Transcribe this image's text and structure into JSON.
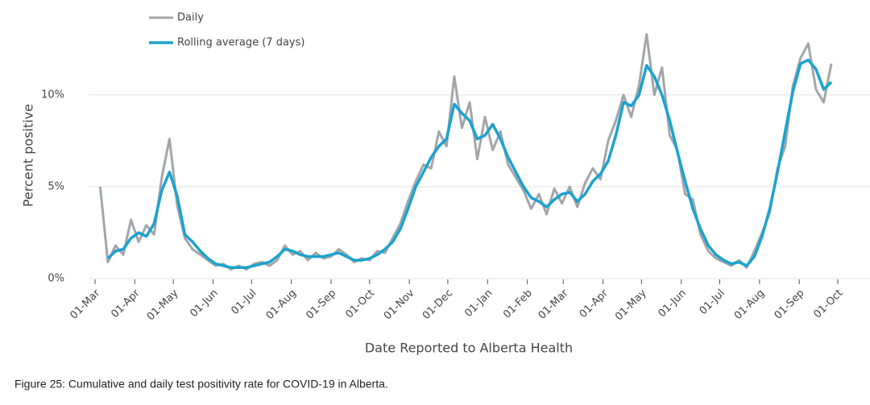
{
  "chart_data": {
    "type": "line",
    "x_label": "Date Reported to Alberta Health",
    "y_label": "Percent positive",
    "caption": "Figure 25: Cumulative and daily test positivity rate for COVID-19 in Alberta.",
    "legend": "top-left",
    "grid": true,
    "x": [
      4,
      10,
      16,
      22,
      28,
      34,
      40,
      46,
      52,
      58,
      64,
      70,
      76,
      82,
      88,
      94,
      100,
      106,
      112,
      118,
      124,
      130,
      136,
      142,
      148,
      154,
      160,
      166,
      172,
      178,
      184,
      190,
      196,
      202,
      208,
      214,
      220,
      226,
      232,
      238,
      244,
      250,
      256,
      262,
      268,
      274,
      280,
      286,
      292,
      298,
      304,
      310,
      316,
      322,
      328,
      334,
      340,
      346,
      352,
      358,
      364,
      370,
      376,
      382,
      388,
      394,
      400,
      406,
      412,
      418,
      424,
      430,
      436,
      442,
      448,
      454,
      460,
      466,
      472,
      478,
      484,
      490,
      496,
      502,
      508,
      514,
      520,
      526,
      532,
      538,
      544,
      550,
      556,
      562,
      568,
      574
    ],
    "series": [
      {
        "name": "Daily",
        "color": "#a2a6aa",
        "width": 3,
        "values": [
          5.0,
          0.9,
          1.8,
          1.3,
          3.2,
          2.0,
          2.9,
          2.4,
          5.5,
          7.6,
          4.0,
          2.2,
          1.6,
          1.3,
          1.0,
          0.7,
          0.8,
          0.5,
          0.7,
          0.5,
          0.8,
          0.9,
          0.7,
          1.0,
          1.8,
          1.3,
          1.5,
          1.0,
          1.4,
          1.1,
          1.2,
          1.6,
          1.3,
          0.9,
          1.1,
          1.0,
          1.5,
          1.4,
          2.2,
          3.0,
          4.2,
          5.3,
          6.2,
          6.0,
          8.0,
          7.2,
          11.0,
          8.2,
          9.6,
          6.5,
          8.8,
          7.0,
          8.0,
          6.2,
          5.5,
          4.8,
          3.8,
          4.6,
          3.5,
          4.9,
          4.1,
          5.0,
          3.9,
          5.2,
          6.0,
          5.4,
          7.5,
          8.6,
          10.0,
          8.8,
          10.5,
          13.3,
          10.0,
          11.5,
          7.8,
          7.0,
          4.6,
          4.3,
          2.4,
          1.5,
          1.1,
          0.9,
          0.7,
          1.0,
          0.6,
          1.5,
          2.5,
          3.6,
          6.0,
          7.2,
          10.5,
          12.0,
          12.8,
          10.3,
          9.6,
          11.7
        ]
      },
      {
        "name": "Rolling average (7 days)",
        "color": "#1ba3cf",
        "width": 3.5,
        "values": [
          null,
          1.1,
          1.5,
          1.6,
          2.2,
          2.5,
          2.3,
          3.0,
          4.8,
          5.8,
          4.5,
          2.4,
          2.0,
          1.5,
          1.1,
          0.8,
          0.7,
          0.6,
          0.6,
          0.6,
          0.7,
          0.8,
          0.9,
          1.2,
          1.6,
          1.5,
          1.3,
          1.2,
          1.2,
          1.2,
          1.3,
          1.4,
          1.2,
          1.0,
          1.0,
          1.1,
          1.3,
          1.6,
          2.0,
          2.7,
          3.8,
          5.0,
          5.8,
          6.6,
          7.2,
          7.6,
          9.5,
          9.0,
          8.6,
          7.6,
          7.8,
          8.4,
          7.6,
          6.6,
          5.8,
          5.0,
          4.4,
          4.2,
          3.9,
          4.3,
          4.6,
          4.7,
          4.2,
          4.6,
          5.3,
          5.7,
          6.4,
          7.8,
          9.6,
          9.4,
          10.0,
          11.6,
          11.0,
          10.0,
          8.6,
          6.9,
          5.3,
          3.8,
          2.7,
          1.8,
          1.3,
          1.0,
          0.8,
          0.9,
          0.7,
          1.2,
          2.3,
          3.8,
          5.8,
          8.0,
          10.2,
          11.7,
          11.9,
          11.4,
          10.3,
          10.7
        ]
      }
    ],
    "xlim": [
      0,
      579
    ],
    "xticks": [
      {
        "value": 0,
        "label": "01-Mar"
      },
      {
        "value": 31,
        "label": "01-Apr"
      },
      {
        "value": 61,
        "label": "01-May"
      },
      {
        "value": 92,
        "label": "01-Jun"
      },
      {
        "value": 122,
        "label": "01-Jul"
      },
      {
        "value": 153,
        "label": "01-Aug"
      },
      {
        "value": 184,
        "label": "01-Sep"
      },
      {
        "value": 214,
        "label": "01-Oct"
      },
      {
        "value": 245,
        "label": "01-Nov"
      },
      {
        "value": 275,
        "label": "01-Dec"
      },
      {
        "value": 306,
        "label": "01-Jan"
      },
      {
        "value": 337,
        "label": "01-Feb"
      },
      {
        "value": 365,
        "label": "01-Mar"
      },
      {
        "value": 396,
        "label": "01-Apr"
      },
      {
        "value": 426,
        "label": "01-May"
      },
      {
        "value": 457,
        "label": "01-Jun"
      },
      {
        "value": 487,
        "label": "01-Jul"
      },
      {
        "value": 518,
        "label": "01-Aug"
      },
      {
        "value": 549,
        "label": "01-Sep"
      },
      {
        "value": 579,
        "label": "01-Oct"
      }
    ],
    "ylim": [
      0,
      13.5
    ],
    "yticks": [
      {
        "value": 0,
        "label": "0%"
      },
      {
        "value": 5,
        "label": "5%"
      },
      {
        "value": 10,
        "label": "10%"
      }
    ]
  }
}
